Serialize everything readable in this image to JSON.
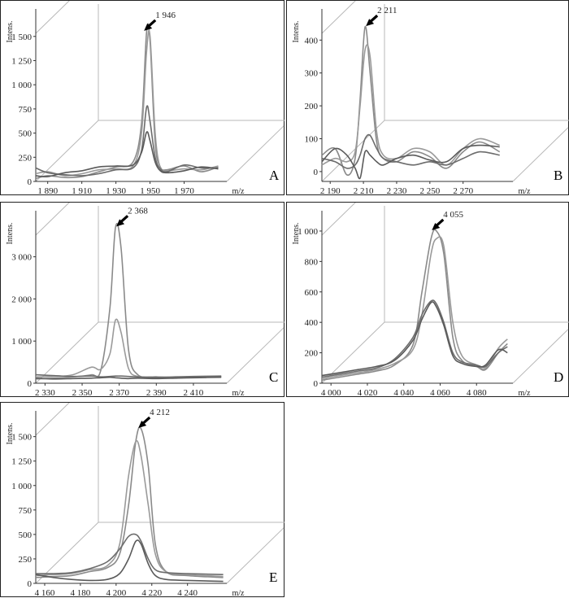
{
  "chart_data": [
    {
      "id": "A",
      "type": "line",
      "panel_label": "A",
      "ylabel": "Intens.",
      "xlabel": "m/z",
      "xlim": [
        1883,
        1995
      ],
      "ylim": [
        0,
        1700
      ],
      "xticks": [
        1890,
        1910,
        1930,
        1950,
        1970
      ],
      "xtick_labels": [
        "1 890",
        "1 910",
        "1 930",
        "1 950",
        "1 970"
      ],
      "yticks": [
        0,
        250,
        500,
        750,
        1000,
        1250,
        1500
      ],
      "ytick_labels": [
        "0",
        "250",
        "500",
        "750",
        "1 000",
        "1 250",
        "1 500"
      ],
      "peak": {
        "x": 1946,
        "label": "1 946"
      },
      "series": [
        {
          "x": [
            1883,
            1890,
            1900,
            1910,
            1920,
            1930,
            1940,
            1945,
            1948,
            1950,
            1953,
            1956,
            1960,
            1970,
            1980,
            1990
          ],
          "y": [
            30,
            60,
            40,
            50,
            100,
            150,
            200,
            600,
            1550,
            1450,
            400,
            150,
            120,
            160,
            100,
            150
          ],
          "color": "#8a8a8a"
        },
        {
          "x": [
            1883,
            1890,
            1900,
            1910,
            1920,
            1930,
            1940,
            1945,
            1948,
            1950,
            1953,
            1956,
            1960,
            1970,
            1980,
            1990
          ],
          "y": [
            80,
            100,
            60,
            80,
            120,
            130,
            160,
            500,
            1350,
            1500,
            500,
            140,
            110,
            130,
            120,
            160
          ],
          "color": "#9a9a9a"
        },
        {
          "x": [
            1883,
            1890,
            1900,
            1910,
            1920,
            1930,
            1940,
            1945,
            1948,
            1950,
            1953,
            1956,
            1960,
            1970,
            1980,
            1990
          ],
          "y": [
            140,
            90,
            70,
            60,
            80,
            120,
            140,
            320,
            770,
            620,
            250,
            130,
            100,
            170,
            140,
            140
          ],
          "color": "#6c6c6c"
        },
        {
          "x": [
            1883,
            1890,
            1900,
            1910,
            1920,
            1930,
            1940,
            1945,
            1948,
            1950,
            1953,
            1956,
            1960,
            1970,
            1980,
            1990
          ],
          "y": [
            60,
            50,
            90,
            110,
            150,
            160,
            170,
            300,
            510,
            420,
            200,
            110,
            90,
            110,
            150,
            130
          ],
          "color": "#5a5a5a"
        }
      ]
    },
    {
      "id": "B",
      "type": "line",
      "panel_label": "B",
      "ylabel": "Intens.",
      "xlabel": "m/z",
      "xlim": [
        2185,
        2300
      ],
      "ylim": [
        -30,
        470
      ],
      "xticks": [
        2190,
        2210,
        2230,
        2250,
        2270
      ],
      "xtick_labels": [
        "2 190",
        "2 210",
        "2 230",
        "2 250",
        "2 270"
      ],
      "yticks": [
        0,
        100,
        200,
        300,
        400
      ],
      "ytick_labels": [
        "0",
        "100",
        "200",
        "300",
        "400"
      ],
      "peak": {
        "x": 2211,
        "label": "2 211"
      },
      "series": [
        {
          "x": [
            2185,
            2193,
            2200,
            2205,
            2208,
            2211,
            2214,
            2218,
            2222,
            2230,
            2240,
            2250,
            2260,
            2270,
            2280,
            2292
          ],
          "y": [
            50,
            70,
            -10,
            40,
            220,
            440,
            300,
            90,
            40,
            30,
            60,
            45,
            10,
            60,
            90,
            60
          ],
          "color": "#8a8a8a"
        },
        {
          "x": [
            2185,
            2193,
            2200,
            2205,
            2208,
            2211,
            2214,
            2218,
            2222,
            2230,
            2240,
            2250,
            2260,
            2270,
            2280,
            2292
          ],
          "y": [
            20,
            40,
            30,
            60,
            200,
            370,
            350,
            120,
            50,
            40,
            70,
            60,
            20,
            70,
            100,
            80
          ],
          "color": "#9a9a9a"
        },
        {
          "x": [
            2185,
            2193,
            2200,
            2205,
            2208,
            2211,
            2214,
            2218,
            2222,
            2230,
            2240,
            2250,
            2260,
            2270,
            2280,
            2292
          ],
          "y": [
            40,
            30,
            10,
            20,
            50,
            100,
            110,
            70,
            40,
            30,
            20,
            30,
            20,
            40,
            60,
            50
          ],
          "color": "#6c6c6c"
        },
        {
          "x": [
            2185,
            2193,
            2200,
            2205,
            2208,
            2211,
            2214,
            2218,
            2222,
            2230,
            2240,
            2250,
            2260,
            2270,
            2280,
            2292
          ],
          "y": [
            30,
            70,
            50,
            10,
            -20,
            60,
            50,
            30,
            20,
            40,
            50,
            35,
            30,
            70,
            80,
            75
          ],
          "color": "#5a5a5a"
        }
      ]
    },
    {
      "id": "C",
      "type": "line",
      "panel_label": "C",
      "ylabel": "Intens.",
      "xlabel": "m/z",
      "xlim": [
        2325,
        2428
      ],
      "ylim": [
        0,
        3900
      ],
      "xticks": [
        2330,
        2350,
        2370,
        2390,
        2410
      ],
      "xtick_labels": [
        "2 330",
        "2 350",
        "2 370",
        "2 390",
        "2 410"
      ],
      "yticks": [
        0,
        1000,
        2000,
        3000
      ],
      "ytick_labels": [
        "0",
        "1 000",
        "2 000",
        "3 000"
      ],
      "peak": {
        "x": 2368,
        "label": "2 368"
      },
      "series": [
        {
          "x": [
            2325,
            2335,
            2345,
            2355,
            2360,
            2365,
            2368,
            2371,
            2375,
            2380,
            2390,
            2400,
            2410,
            2425
          ],
          "y": [
            100,
            120,
            150,
            200,
            300,
            1800,
            3700,
            3200,
            800,
            200,
            150,
            130,
            140,
            150
          ],
          "color": "#8a8a8a"
        },
        {
          "x": [
            2325,
            2335,
            2345,
            2355,
            2360,
            2365,
            2368,
            2371,
            2375,
            2380,
            2390,
            2400,
            2410,
            2425
          ],
          "y": [
            150,
            160,
            200,
            380,
            330,
            700,
            1500,
            1200,
            350,
            160,
            150,
            140,
            150,
            160
          ],
          "color": "#9a9a9a"
        },
        {
          "x": [
            2325,
            2335,
            2345,
            2355,
            2360,
            2365,
            2368,
            2371,
            2375,
            2380,
            2390,
            2400,
            2410,
            2425
          ],
          "y": [
            200,
            180,
            160,
            170,
            150,
            160,
            170,
            170,
            160,
            150,
            140,
            150,
            160,
            170
          ],
          "color": "#6c6c6c"
        },
        {
          "x": [
            2325,
            2335,
            2345,
            2355,
            2360,
            2365,
            2368,
            2371,
            2375,
            2380,
            2390,
            2400,
            2410,
            2425
          ],
          "y": [
            120,
            100,
            110,
            120,
            130,
            140,
            130,
            120,
            110,
            120,
            110,
            120,
            130,
            140
          ],
          "color": "#5a5a5a"
        }
      ]
    },
    {
      "id": "D",
      "type": "line",
      "panel_label": "D",
      "ylabel": "Intens.",
      "xlabel": "m/z",
      "xlim": [
        3995,
        4100
      ],
      "ylim": [
        0,
        1080
      ],
      "xticks": [
        4000,
        4020,
        4040,
        4060,
        4080
      ],
      "xtick_labels": [
        "4 000",
        "4 020",
        "4 040",
        "4 060",
        "4 080"
      ],
      "yticks": [
        0,
        200,
        400,
        600,
        800,
        1000
      ],
      "ytick_labels": [
        "0",
        "200",
        "400",
        "600",
        "800",
        "1 000"
      ],
      "peak": {
        "x": 4055,
        "label": "4 055"
      },
      "series": [
        {
          "x": [
            3995,
            4005,
            4015,
            4025,
            4035,
            4045,
            4050,
            4055,
            4058,
            4062,
            4067,
            4072,
            4080,
            4085,
            4092,
            4097
          ],
          "y": [
            20,
            40,
            60,
            80,
            120,
            250,
            600,
            950,
            1000,
            850,
            300,
            150,
            110,
            90,
            200,
            260
          ],
          "color": "#8a8a8a"
        },
        {
          "x": [
            3995,
            4005,
            4015,
            4025,
            4035,
            4045,
            4050,
            4055,
            4058,
            4062,
            4067,
            4072,
            4080,
            4085,
            4092,
            4097
          ],
          "y": [
            30,
            50,
            70,
            90,
            130,
            220,
            450,
            850,
            950,
            900,
            400,
            180,
            120,
            100,
            230,
            290
          ],
          "color": "#9a9a9a"
        },
        {
          "x": [
            3995,
            4005,
            4015,
            4025,
            4035,
            4045,
            4050,
            4055,
            4058,
            4062,
            4067,
            4072,
            4080,
            4085,
            4092,
            4097
          ],
          "y": [
            40,
            60,
            80,
            100,
            160,
            300,
            450,
            540,
            520,
            400,
            200,
            140,
            120,
            110,
            200,
            240
          ],
          "color": "#6c6c6c"
        },
        {
          "x": [
            3995,
            4005,
            4015,
            4025,
            4035,
            4045,
            4050,
            4055,
            4058,
            4062,
            4067,
            4072,
            4080,
            4085,
            4092,
            4097
          ],
          "y": [
            50,
            70,
            90,
            110,
            150,
            280,
            420,
            530,
            500,
            380,
            180,
            130,
            110,
            120,
            220,
            200
          ],
          "color": "#5a5a5a"
        }
      ]
    },
    {
      "id": "E",
      "type": "line",
      "panel_label": "E",
      "ylabel": "Intens.",
      "xlabel": "m/z",
      "xlim": [
        4155,
        4262
      ],
      "ylim": [
        0,
        1680
      ],
      "xticks": [
        4160,
        4180,
        4200,
        4220,
        4240
      ],
      "xtick_labels": [
        "4 160",
        "4 180",
        "4 200",
        "4 220",
        "4 240"
      ],
      "yticks": [
        0,
        250,
        500,
        750,
        1000,
        1250,
        1500
      ],
      "ytick_labels": [
        "0",
        "250",
        "500",
        "750",
        "1 000",
        "1 250",
        "1 500"
      ],
      "peak": {
        "x": 4212,
        "label": "4 212"
      },
      "series": [
        {
          "x": [
            4155,
            4165,
            4175,
            4185,
            4195,
            4202,
            4207,
            4211,
            4214,
            4218,
            4222,
            4228,
            4240,
            4260
          ],
          "y": [
            60,
            70,
            80,
            120,
            160,
            300,
            800,
            1450,
            1580,
            1200,
            400,
            120,
            80,
            60
          ],
          "color": "#8a8a8a"
        },
        {
          "x": [
            4155,
            4165,
            4175,
            4185,
            4195,
            4202,
            4207,
            4211,
            4214,
            4218,
            4222,
            4228,
            4240,
            4260
          ],
          "y": [
            80,
            90,
            100,
            140,
            180,
            400,
            1100,
            1450,
            1300,
            800,
            300,
            120,
            90,
            70
          ],
          "color": "#9a9a9a"
        },
        {
          "x": [
            4155,
            4165,
            4175,
            4185,
            4195,
            4202,
            4207,
            4211,
            4214,
            4218,
            4222,
            4228,
            4240,
            4260
          ],
          "y": [
            100,
            100,
            110,
            150,
            220,
            350,
            480,
            500,
            430,
            250,
            140,
            110,
            100,
            90
          ],
          "color": "#6c6c6c"
        },
        {
          "x": [
            4155,
            4165,
            4175,
            4185,
            4195,
            4202,
            4207,
            4211,
            4214,
            4218,
            4222,
            4228,
            4240,
            4260
          ],
          "y": [
            90,
            60,
            40,
            30,
            40,
            100,
            250,
            430,
            400,
            200,
            80,
            40,
            30,
            20
          ],
          "color": "#5a5a5a"
        }
      ]
    }
  ]
}
